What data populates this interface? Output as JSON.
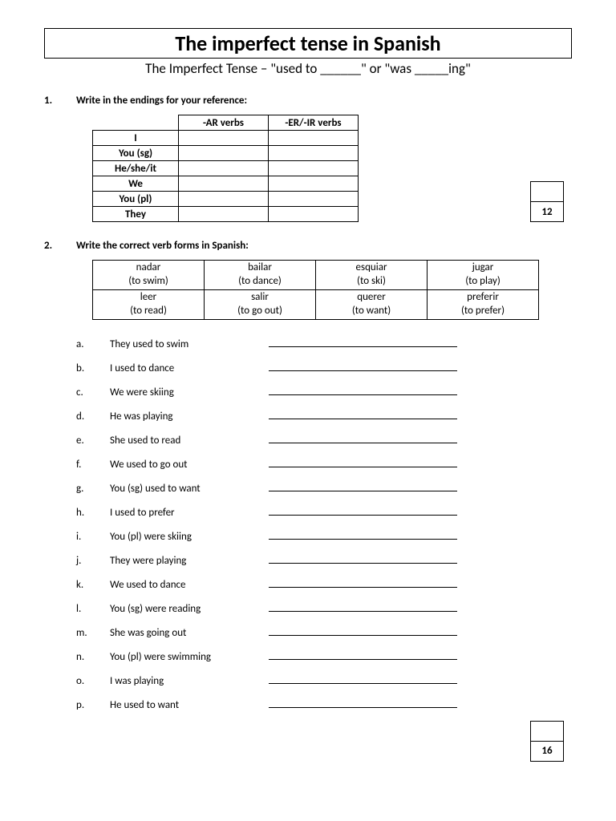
{
  "title": "The imperfect tense in Spanish",
  "subtitle": "The Imperfect Tense – \"used to ______\" or \"was _____ing\"",
  "section1": {
    "num": "1.",
    "text": "Write in the endings for your reference:",
    "col1": "-AR verbs",
    "col2": "-ER/-IR verbs",
    "rows": [
      "I",
      "You (sg)",
      "He/she/it",
      "We",
      "You (pl)",
      "They"
    ],
    "score": "12"
  },
  "section2": {
    "num": "2.",
    "text": "Write the correct verb forms in Spanish:",
    "verbs": [
      [
        {
          "w": "nadar",
          "g": "(to swim)"
        },
        {
          "w": "bailar",
          "g": "(to dance)"
        },
        {
          "w": "esquiar",
          "g": "(to ski)"
        },
        {
          "w": "jugar",
          "g": "(to play)"
        }
      ],
      [
        {
          "w": "leer",
          "g": "(to read)"
        },
        {
          "w": "salir",
          "g": "(to go out)"
        },
        {
          "w": "querer",
          "g": "(to want)"
        },
        {
          "w": "preferir",
          "g": "(to prefer)"
        }
      ]
    ],
    "items": [
      {
        "l": "a.",
        "t": "They used to swim"
      },
      {
        "l": "b.",
        "t": "I used to dance"
      },
      {
        "l": "c.",
        "t": "We were skiing"
      },
      {
        "l": "d.",
        "t": "He was playing"
      },
      {
        "l": "e.",
        "t": "She used to read"
      },
      {
        "l": "f.",
        "t": "We used to go out"
      },
      {
        "l": "g.",
        "t": "You (sg) used to want"
      },
      {
        "l": "h.",
        "t": "I used to prefer"
      },
      {
        "l": "i.",
        "t": "You (pl) were skiing"
      },
      {
        "l": "j.",
        "t": "They were playing"
      },
      {
        "l": "k.",
        "t": "We used to dance"
      },
      {
        "l": "l.",
        "t": "You (sg) were reading"
      },
      {
        "l": "m.",
        "t": "She was going out"
      },
      {
        "l": "n.",
        "t": "You (pl) were swimming"
      },
      {
        "l": "o.",
        "t": "I was playing"
      },
      {
        "l": "p.",
        "t": "He used to want"
      }
    ],
    "score": "16"
  }
}
